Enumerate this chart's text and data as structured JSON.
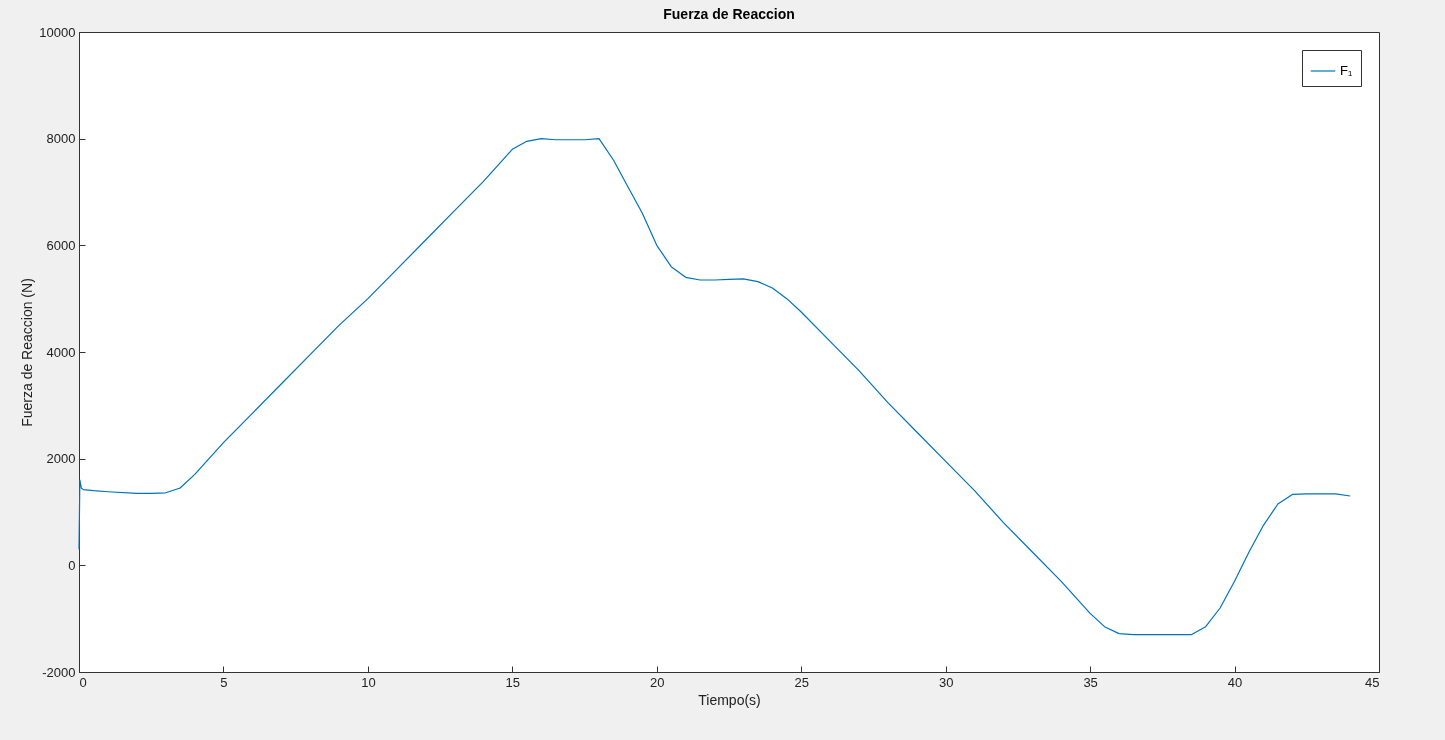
{
  "chart_data": {
    "type": "line",
    "title": "Fuerza de Reaccion",
    "xlabel": "Tiempo(s)",
    "ylabel": "Fuerza de Reaccion (N)",
    "xlim": [
      0,
      45
    ],
    "xticks": [
      0,
      5,
      10,
      15,
      20,
      25,
      30,
      35,
      40,
      45
    ],
    "ylim": [
      -2000,
      10000
    ],
    "yticks": [
      -2000,
      0,
      2000,
      4000,
      6000,
      8000,
      10000
    ],
    "grid": false,
    "legend": "top right",
    "x": [
      0,
      0.03,
      0.08,
      0.15,
      0.5,
      1,
      2,
      2.5,
      3,
      3.5,
      4,
      4.5,
      5,
      6,
      7,
      8,
      9,
      10,
      11,
      12,
      13,
      14,
      14.5,
      15,
      15.5,
      16,
      16.5,
      17,
      17.5,
      18,
      18.5,
      19,
      19.5,
      20,
      20.5,
      21,
      21.5,
      22,
      22.5,
      23,
      23.5,
      24,
      24.5,
      25,
      26,
      27,
      28,
      29,
      30,
      31,
      32,
      33,
      34,
      35,
      35.5,
      36,
      36.5,
      37,
      37.5,
      38,
      38.5,
      39,
      39.5,
      40,
      40.5,
      41,
      41.5,
      42,
      42.5,
      43,
      43.5,
      44
    ],
    "series": [
      {
        "name": "F₁",
        "color": "#0072bd",
        "values": [
          300,
          1600,
          1450,
          1420,
          1400,
          1380,
          1350,
          1350,
          1360,
          1450,
          1700,
          2000,
          2300,
          2850,
          3400,
          3950,
          4500,
          5000,
          5550,
          6100,
          6650,
          7200,
          7500,
          7800,
          7950,
          8000,
          7980,
          7980,
          7980,
          8000,
          7600,
          7100,
          6600,
          6000,
          5600,
          5400,
          5350,
          5350,
          5360,
          5370,
          5320,
          5200,
          5000,
          4750,
          4200,
          3650,
          3050,
          2500,
          1950,
          1400,
          800,
          250,
          -300,
          -900,
          -1150,
          -1280,
          -1300,
          -1300,
          -1300,
          -1300,
          -1300,
          -1150,
          -800,
          -300,
          250,
          750,
          1150,
          1330,
          1340,
          1340,
          1340,
          1300
        ]
      }
    ]
  }
}
